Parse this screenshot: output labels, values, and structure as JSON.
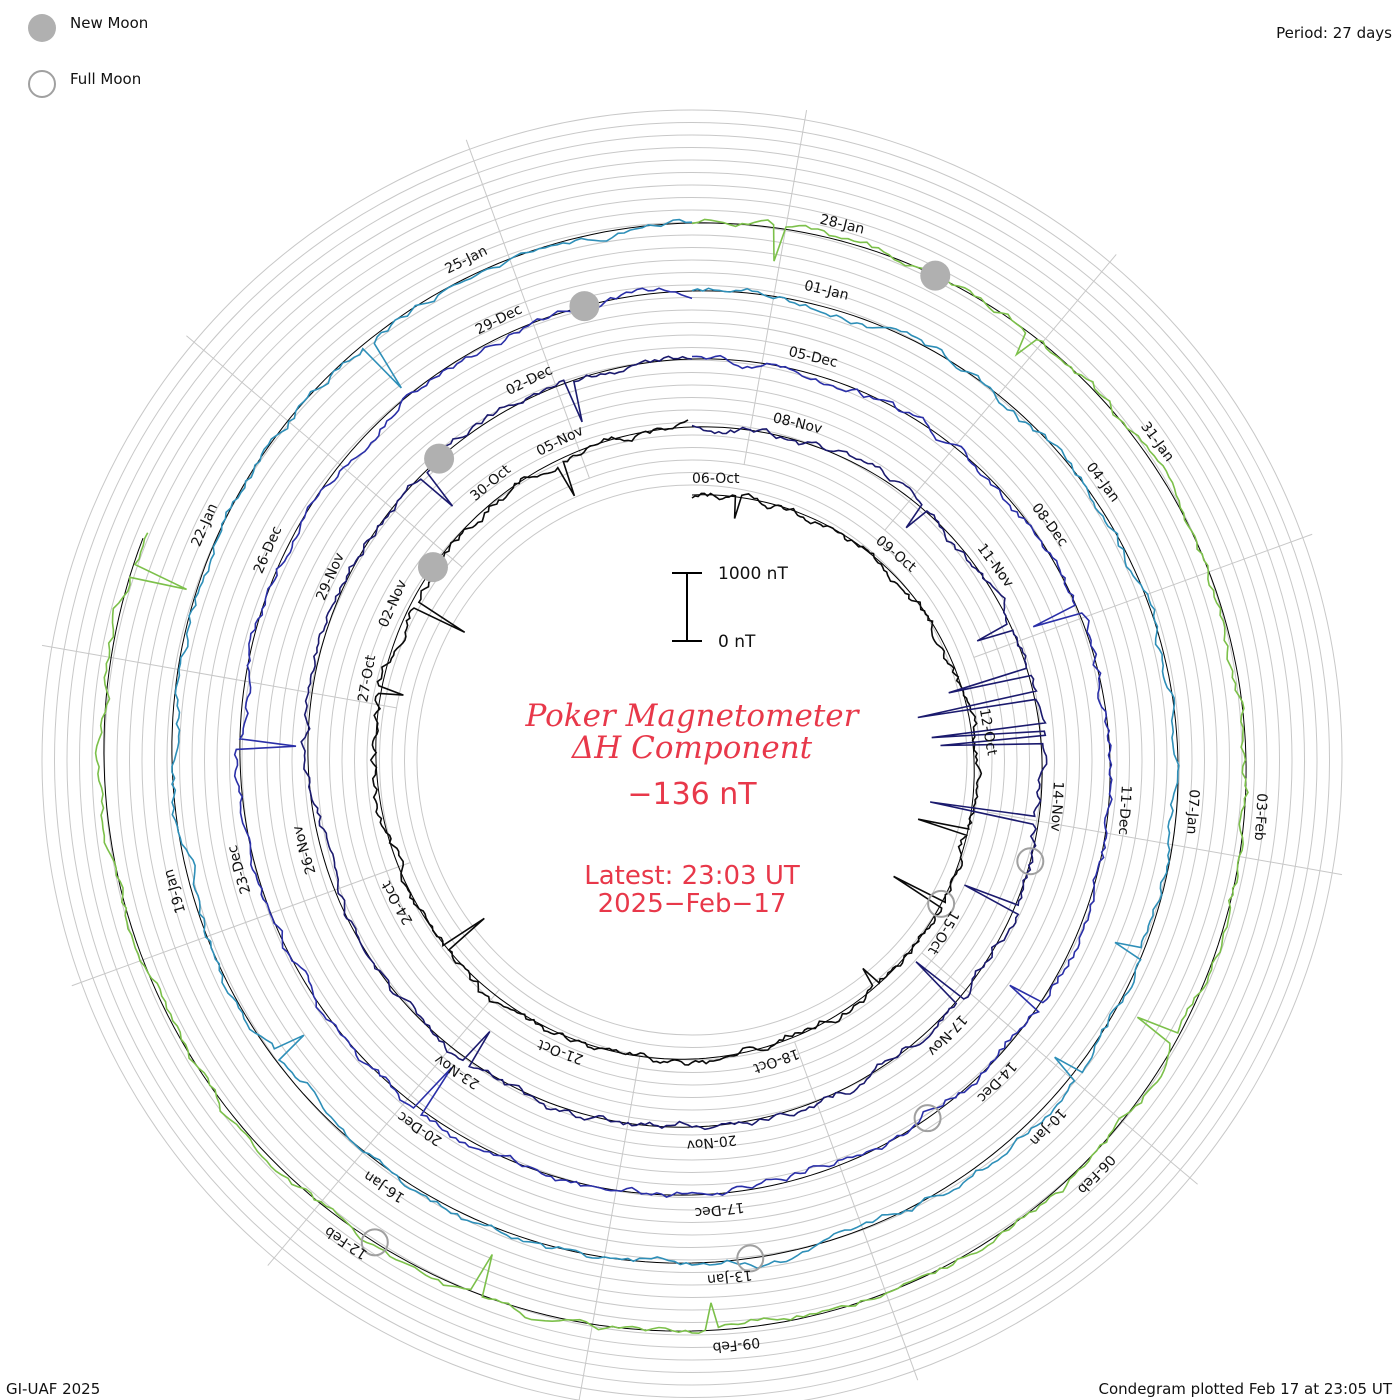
{
  "legend": {
    "new_moon_label": "New Moon",
    "full_moon_label": "Full Moon"
  },
  "period_label": "Period: 27 days",
  "credit": "GI-UAF 2025",
  "plotted_label": "Condegram plotted Feb 17 at 23:05 UT",
  "center": {
    "title_line1": "Poker Magnetometer",
    "title_line2": "ΔH Component",
    "current_value": "−136 nT",
    "latest_line1": "Latest: 23:03 UT",
    "latest_line2": "2025−Feb−17"
  },
  "scale_bar": {
    "top_label": "1000 nT",
    "bottom_label": "0 nT"
  },
  "colors": {
    "title": "#e8384a",
    "grid": "#c8c8c8",
    "baseline": "#000000",
    "new_moon_fill": "#b0b0b0",
    "full_moon_stroke": "#a0a0a0",
    "revolutions": [
      "#0a0a0a",
      "#1b1a6e",
      "#2a2fa8",
      "#2e8fb8",
      "#7cc04a",
      "#b3ad22",
      "#cc7a1f",
      "#c4231a"
    ]
  },
  "chart_data": {
    "type": "condegram",
    "title": "Poker Magnetometer ΔH Component",
    "period_days": 27,
    "unit": "nT",
    "scale_reference": [
      0,
      1000
    ],
    "latest": {
      "time": "23:03 UT",
      "date": "2025-Feb-17",
      "value_nT": -136
    },
    "revolutions": [
      {
        "start": "06-Oct",
        "approx_range_nT": [
          -200,
          50
        ]
      },
      {
        "start": "09-Oct",
        "approx_range_nT": [
          -2500,
          100
        ]
      },
      {
        "start": "02-Nov",
        "approx_range_nT": [
          -600,
          150
        ]
      },
      {
        "start": "29-Nov",
        "approx_range_nT": [
          -500,
          100
        ]
      },
      {
        "start": "26-Dec",
        "approx_range_nT": [
          -600,
          150
        ]
      },
      {
        "start": "22-Jan",
        "approx_range_nT": [
          -700,
          150
        ]
      },
      {
        "start": "19-Jan",
        "approx_range_nT": [
          -600,
          150
        ]
      },
      {
        "start": "12-Feb",
        "approx_range_nT": [
          -500,
          100
        ]
      }
    ],
    "date_labels": [
      "06-Oct",
      "09-Oct",
      "12-Oct",
      "15-Oct",
      "18-Oct",
      "21-Oct",
      "24-Oct",
      "27-Oct",
      "30-Oct",
      "02-Nov",
      "05-Nov",
      "08-Nov",
      "11-Nov",
      "14-Nov",
      "17-Nov",
      "20-Nov",
      "23-Nov",
      "26-Nov",
      "29-Nov",
      "02-Dec",
      "05-Dec",
      "08-Dec",
      "11-Dec",
      "14-Dec",
      "17-Dec",
      "20-Dec",
      "23-Dec",
      "26-Dec",
      "29-Dec",
      "01-Jan",
      "04-Jan",
      "07-Jan",
      "10-Jan",
      "13-Jan",
      "16-Jan",
      "19-Jan",
      "22-Jan",
      "25-Jan",
      "28-Jan",
      "31-Jan",
      "03-Feb",
      "06-Feb",
      "09-Feb",
      "12-Feb"
    ],
    "new_moons": [
      "29-Oct",
      "01-Dec",
      "30-Dec",
      "29-Jan"
    ],
    "full_moons": [
      "15-Oct",
      "15-Nov",
      "15-Dec",
      "13-Jan",
      "12-Feb"
    ]
  }
}
